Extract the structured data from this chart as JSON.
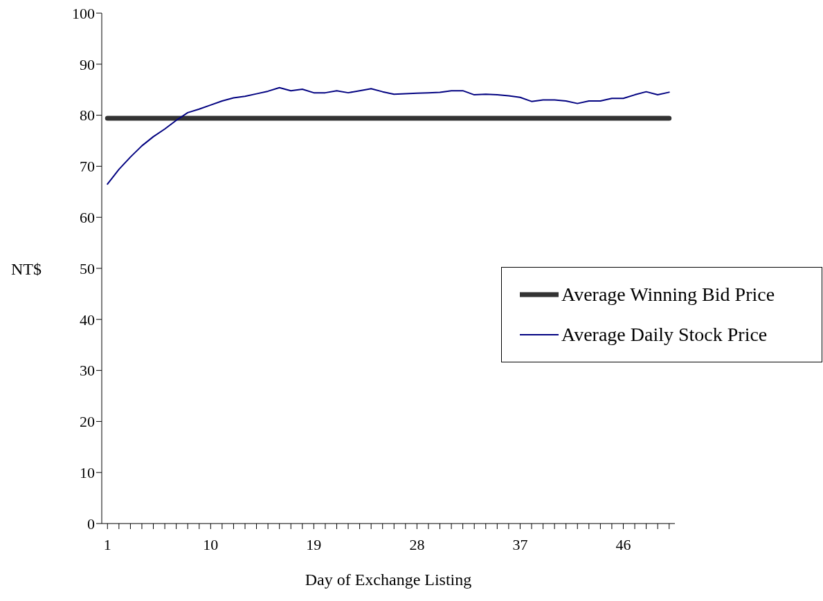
{
  "chart_data": {
    "type": "line",
    "xlabel": "Day of Exchange Listing",
    "ylabel": "NT$",
    "categories": [
      "1",
      null,
      null,
      null,
      null,
      null,
      null,
      null,
      null,
      "10",
      null,
      null,
      null,
      null,
      null,
      null,
      null,
      null,
      "19",
      null,
      null,
      null,
      null,
      null,
      null,
      null,
      null,
      "28",
      null,
      null,
      null,
      null,
      null,
      null,
      null,
      null,
      "37",
      null,
      null,
      null,
      null,
      null,
      null,
      null,
      null,
      "46",
      null,
      null,
      null,
      null
    ],
    "series": [
      {
        "name": "Average Winning Bid Price",
        "color": "#333333",
        "values": [
          79.4,
          79.4,
          79.4,
          79.4,
          79.4,
          79.4,
          79.4,
          79.4,
          79.4,
          79.4,
          79.4,
          79.4,
          79.4,
          79.4,
          79.4,
          79.4,
          79.4,
          79.4,
          79.4,
          79.4,
          79.4,
          79.4,
          79.4,
          79.4,
          79.4,
          79.4,
          79.4,
          79.4,
          79.4,
          79.4,
          79.4,
          79.4,
          79.4,
          79.4,
          79.4,
          79.4,
          79.4,
          79.4,
          79.4,
          79.4,
          79.4,
          79.4,
          79.4,
          79.4,
          79.4,
          79.4,
          79.4,
          79.4,
          79.4,
          79.4
        ]
      },
      {
        "name": "Average Daily Stock Price",
        "color": "#000080",
        "values": [
          66.5,
          69.4,
          71.8,
          74.0,
          75.8,
          77.3,
          79.0,
          80.5,
          81.2,
          82.0,
          82.8,
          83.4,
          83.7,
          84.2,
          84.7,
          85.4,
          84.8,
          85.1,
          84.4,
          84.4,
          84.8,
          84.4,
          84.8,
          85.2,
          84.6,
          84.1,
          84.2,
          84.3,
          84.4,
          84.5,
          84.8,
          84.8,
          84.0,
          84.1,
          84.0,
          83.8,
          83.5,
          82.7,
          83.0,
          83.0,
          82.8,
          82.3,
          82.8,
          82.8,
          83.3,
          83.3,
          84.0,
          84.6,
          84.0,
          84.5
        ]
      }
    ],
    "ylim": [
      0,
      100
    ],
    "yticks": [
      0,
      10,
      20,
      30,
      40,
      50,
      60,
      70,
      80,
      90,
      100
    ],
    "grid": false,
    "legend": "right",
    "marker": "none",
    "line_style": "solid"
  }
}
